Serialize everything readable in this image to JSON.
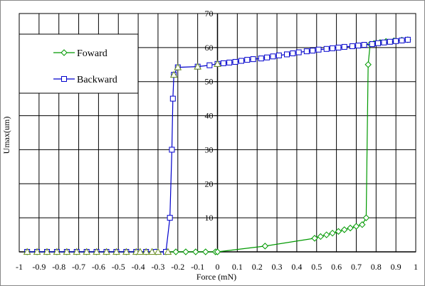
{
  "chart_data": {
    "type": "line",
    "xlabel": "Force (mN)",
    "ylabel": "Umax(um)",
    "xlim": [
      -1,
      1
    ],
    "ylim": [
      0,
      70
    ],
    "xticks": [
      -1,
      -0.9,
      -0.8,
      -0.7,
      -0.6,
      -0.5,
      -0.4,
      -0.3,
      -0.2,
      -0.1,
      0,
      0.1,
      0.2,
      0.3,
      0.4,
      0.5,
      0.6,
      0.7,
      0.8,
      0.9,
      1
    ],
    "yticks": [
      10,
      20,
      30,
      40,
      50,
      60,
      70
    ],
    "x_tick_labels": [
      "-1",
      "-0.9",
      "-0.8",
      "-0.7",
      "-0.6",
      "-0.5",
      "-0.4",
      "-0.3",
      "-0.2",
      "-0.1",
      "0",
      "0.1",
      "0.2",
      "0.3",
      "0.4",
      "0.5",
      "0.6",
      "0.7",
      "0.8",
      "0.9",
      "1"
    ],
    "y_tick_labels": [
      "10",
      "20",
      "30",
      "40",
      "50",
      "60",
      "70"
    ],
    "grid": true,
    "legend_position": "top-left",
    "colors": {
      "forward": "#009900",
      "backward": "#0000cc",
      "triangle": "#6b8e23"
    },
    "series": [
      {
        "name": "Foward",
        "color": "#009900",
        "marker": "diamond",
        "x": [
          -0.96,
          -0.91,
          -0.86,
          -0.81,
          -0.76,
          -0.71,
          -0.66,
          -0.61,
          -0.56,
          -0.51,
          -0.46,
          -0.41,
          -0.36,
          -0.31,
          -0.26,
          -0.21,
          -0.16,
          -0.11,
          -0.06,
          -0.01,
          0.0,
          0.24,
          0.49,
          0.52,
          0.55,
          0.58,
          0.61,
          0.64,
          0.67,
          0.7,
          0.73,
          0.75,
          0.76,
          0.77,
          0.79,
          0.82,
          0.85,
          0.89,
          0.93,
          0.96
        ],
        "y": [
          0,
          0,
          0,
          0,
          0,
          0,
          0,
          0,
          0,
          0,
          0,
          0,
          0,
          0,
          0,
          0,
          0,
          0,
          0,
          0,
          0,
          1.7,
          4,
          4.5,
          5,
          5.5,
          6,
          6.5,
          7,
          7.5,
          8,
          10,
          55,
          61,
          61.2,
          61.5,
          61.8,
          62,
          62.2,
          62.3
        ]
      },
      {
        "name": "Backward",
        "color": "#0000cc",
        "marker": "square",
        "x": [
          0.96,
          0.93,
          0.9,
          0.87,
          0.84,
          0.81,
          0.78,
          0.74,
          0.71,
          0.68,
          0.64,
          0.61,
          0.58,
          0.55,
          0.51,
          0.48,
          0.45,
          0.41,
          0.38,
          0.35,
          0.31,
          0.28,
          0.25,
          0.22,
          0.18,
          0.15,
          0.12,
          0.09,
          0.06,
          0.03,
          0.0,
          -0.04,
          -0.1,
          -0.2,
          -0.22,
          -0.225,
          -0.23,
          -0.24,
          -0.26,
          -0.31,
          -0.36,
          -0.41,
          -0.46,
          -0.51,
          -0.56,
          -0.61,
          -0.66,
          -0.71,
          -0.76,
          -0.81,
          -0.86,
          -0.91,
          -0.96
        ],
        "y": [
          62.3,
          62.1,
          61.9,
          61.7,
          61.5,
          61.3,
          61,
          60.8,
          60.6,
          60.4,
          60.2,
          60,
          59.8,
          59.6,
          59.4,
          59.1,
          58.9,
          58.6,
          58.3,
          58,
          57.7,
          57.4,
          57.1,
          56.8,
          56.6,
          56.4,
          56.1,
          55.8,
          55.6,
          55.4,
          55.2,
          54.8,
          54.4,
          54.2,
          52,
          45,
          30,
          10,
          0,
          0,
          0,
          0,
          0,
          0,
          0,
          0,
          0,
          0,
          0,
          0,
          0,
          0,
          0
        ]
      }
    ],
    "triangle_points": {
      "x": [
        -0.96,
        -0.91,
        -0.86,
        -0.81,
        -0.76,
        -0.71,
        -0.66,
        -0.61,
        -0.56,
        -0.51,
        -0.46,
        -0.41,
        -0.39,
        -0.36,
        -0.33,
        -0.3,
        -0.25,
        -0.22,
        -0.2,
        -0.1,
        0.0
      ],
      "y": [
        0,
        0,
        0,
        0,
        0,
        0,
        0,
        0,
        0,
        0,
        0,
        0,
        0,
        0,
        0,
        0,
        0,
        52,
        54.2,
        54.4,
        55.2
      ]
    },
    "legend": [
      {
        "label": "Foward",
        "marker": "diamond",
        "color": "#009900"
      },
      {
        "label": "Backward",
        "marker": "square",
        "color": "#0000cc"
      }
    ]
  }
}
